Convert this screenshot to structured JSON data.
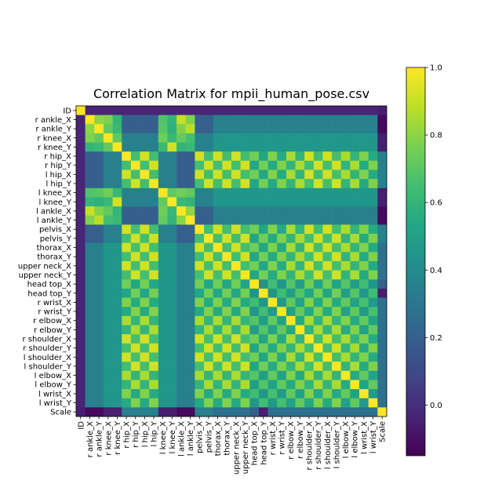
{
  "chart_data": {
    "type": "heatmap",
    "title": "Correlation Matrix for mpii_human_pose.csv",
    "categories": [
      "ID",
      "r ankle_X",
      "r ankle_Y",
      "r knee_X",
      "r knee_Y",
      "r hip_X",
      "r hip_Y",
      "l hip_X",
      "l hip_Y",
      "l knee_X",
      "l knee_Y",
      "l ankle_X",
      "l ankle_Y",
      "pelvis_X",
      "pelvis_Y",
      "thorax_X",
      "thorax_Y",
      "upper neck_X",
      "upper neck_Y",
      "head top_X",
      "head top_Y",
      "r wrist_X",
      "r wrist_Y",
      "r elbow_X",
      "r elbow_Y",
      "r shoulder_X",
      "r shoulder_Y",
      "l shoulder_X",
      "l shoulder_Y",
      "l elbow_X",
      "l elbow_Y",
      "l wrist_X",
      "l wrist_Y",
      "Scale"
    ],
    "colormap": "viridis",
    "clim": [
      -0.15,
      1
    ],
    "cticks": [
      {
        "value": 0,
        "label": "0.0"
      },
      0.2,
      0.4,
      0.6,
      0.8,
      {
        "value": 1,
        "label": "1.0"
      }
    ],
    "values": [
      [
        1,
        -0.03,
        -0.03,
        -0.03,
        -0.03,
        -0.03,
        -0.03,
        -0.03,
        -0.03,
        -0.03,
        -0.03,
        -0.03,
        -0.03,
        -0.03,
        -0.03,
        -0.03,
        -0.03,
        -0.03,
        -0.03,
        -0.03,
        -0.03,
        -0.03,
        -0.03,
        -0.03,
        -0.03,
        -0.03,
        -0.03,
        -0.03,
        -0.03,
        -0.03,
        -0.03,
        -0.03,
        -0.03,
        -0.05
      ],
      [
        -0.03,
        1,
        0.8,
        0.78,
        0.6,
        0.2,
        0.2,
        0.2,
        0.2,
        0.68,
        0.6,
        0.9,
        0.78,
        0.2,
        0.2,
        0.35,
        0.35,
        0.35,
        0.35,
        0.35,
        0.35,
        0.35,
        0.35,
        0.35,
        0.35,
        0.35,
        0.35,
        0.35,
        0.35,
        0.35,
        0.35,
        0.35,
        0.35,
        -0.12
      ],
      [
        -0.03,
        0.8,
        1,
        0.72,
        0.62,
        0.2,
        0.2,
        0.2,
        0.2,
        0.7,
        0.58,
        0.78,
        0.88,
        0.2,
        0.2,
        0.35,
        0.35,
        0.35,
        0.35,
        0.35,
        0.35,
        0.35,
        0.35,
        0.35,
        0.35,
        0.35,
        0.35,
        0.35,
        0.35,
        0.35,
        0.35,
        0.35,
        0.35,
        -0.12
      ],
      [
        -0.03,
        0.78,
        0.72,
        1,
        0.72,
        0.35,
        0.35,
        0.35,
        0.35,
        0.75,
        0.62,
        0.72,
        0.65,
        0.35,
        0.35,
        0.45,
        0.45,
        0.45,
        0.45,
        0.45,
        0.45,
        0.45,
        0.45,
        0.45,
        0.45,
        0.45,
        0.45,
        0.45,
        0.45,
        0.45,
        0.45,
        0.45,
        0.45,
        -0.05
      ],
      [
        -0.03,
        0.6,
        0.62,
        0.72,
        1,
        0.35,
        0.35,
        0.35,
        0.35,
        0.62,
        0.92,
        0.6,
        0.62,
        0.35,
        0.35,
        0.45,
        0.45,
        0.45,
        0.45,
        0.45,
        0.45,
        0.45,
        0.45,
        0.45,
        0.45,
        0.45,
        0.45,
        0.45,
        0.45,
        0.45,
        0.45,
        0.45,
        0.45,
        -0.05
      ],
      [
        -0.03,
        0.2,
        0.2,
        0.35,
        0.35,
        1,
        0.65,
        0.92,
        0.65,
        0.35,
        0.35,
        0.2,
        0.2,
        0.92,
        0.65,
        0.92,
        0.65,
        0.92,
        0.65,
        0.75,
        0.53,
        0.78,
        0.55,
        0.85,
        0.6,
        0.92,
        0.65,
        0.92,
        0.65,
        0.85,
        0.6,
        0.78,
        0.55,
        0.35
      ],
      [
        -0.03,
        0.2,
        0.2,
        0.35,
        0.35,
        0.65,
        1,
        0.65,
        0.92,
        0.35,
        0.35,
        0.2,
        0.2,
        0.65,
        0.92,
        0.65,
        0.92,
        0.65,
        0.92,
        0.53,
        0.75,
        0.55,
        0.78,
        0.6,
        0.85,
        0.65,
        0.92,
        0.65,
        0.92,
        0.6,
        0.85,
        0.55,
        0.78,
        0.35
      ],
      [
        -0.03,
        0.2,
        0.2,
        0.35,
        0.35,
        0.92,
        0.65,
        1,
        0.65,
        0.35,
        0.35,
        0.2,
        0.2,
        0.92,
        0.65,
        0.92,
        0.65,
        0.92,
        0.65,
        0.75,
        0.53,
        0.78,
        0.55,
        0.85,
        0.6,
        0.92,
        0.65,
        0.92,
        0.65,
        0.85,
        0.6,
        0.78,
        0.55,
        0.35
      ],
      [
        -0.03,
        0.2,
        0.2,
        0.35,
        0.35,
        0.65,
        0.92,
        0.65,
        1,
        0.35,
        0.35,
        0.2,
        0.2,
        0.65,
        0.92,
        0.65,
        0.92,
        0.65,
        0.92,
        0.53,
        0.75,
        0.55,
        0.78,
        0.6,
        0.85,
        0.65,
        0.92,
        0.65,
        0.92,
        0.6,
        0.85,
        0.55,
        0.78,
        0.35
      ],
      [
        -0.03,
        0.68,
        0.7,
        0.75,
        0.62,
        0.35,
        0.35,
        0.35,
        0.35,
        1,
        0.72,
        0.75,
        0.72,
        0.35,
        0.35,
        0.45,
        0.45,
        0.45,
        0.45,
        0.45,
        0.45,
        0.45,
        0.45,
        0.45,
        0.45,
        0.45,
        0.45,
        0.45,
        0.45,
        0.45,
        0.45,
        0.45,
        0.45,
        -0.05
      ],
      [
        -0.03,
        0.6,
        0.58,
        0.62,
        0.92,
        0.35,
        0.35,
        0.35,
        0.35,
        0.72,
        1,
        0.62,
        0.6,
        0.35,
        0.35,
        0.45,
        0.45,
        0.45,
        0.45,
        0.45,
        0.45,
        0.45,
        0.45,
        0.45,
        0.45,
        0.45,
        0.45,
        0.45,
        0.45,
        0.45,
        0.45,
        0.45,
        0.45,
        -0.05
      ],
      [
        -0.03,
        0.9,
        0.78,
        0.72,
        0.6,
        0.2,
        0.2,
        0.2,
        0.2,
        0.75,
        0.62,
        1,
        0.8,
        0.2,
        0.2,
        0.35,
        0.35,
        0.35,
        0.35,
        0.35,
        0.35,
        0.35,
        0.35,
        0.35,
        0.35,
        0.35,
        0.35,
        0.35,
        0.35,
        0.35,
        0.35,
        0.35,
        0.35,
        -0.12
      ],
      [
        -0.03,
        0.78,
        0.88,
        0.65,
        0.62,
        0.2,
        0.2,
        0.2,
        0.2,
        0.72,
        0.6,
        0.8,
        1,
        0.2,
        0.2,
        0.35,
        0.35,
        0.35,
        0.35,
        0.35,
        0.35,
        0.35,
        0.35,
        0.35,
        0.35,
        0.35,
        0.35,
        0.35,
        0.35,
        0.35,
        0.35,
        0.35,
        0.35,
        -0.12
      ],
      [
        -0.03,
        0.2,
        0.2,
        0.35,
        0.35,
        0.92,
        0.65,
        0.92,
        0.65,
        0.35,
        0.35,
        0.2,
        0.2,
        1,
        0.65,
        0.92,
        0.65,
        0.92,
        0.65,
        0.75,
        0.53,
        0.78,
        0.55,
        0.85,
        0.6,
        0.92,
        0.65,
        0.92,
        0.65,
        0.85,
        0.6,
        0.78,
        0.55,
        0.35
      ],
      [
        -0.03,
        0.2,
        0.2,
        0.35,
        0.35,
        0.65,
        0.92,
        0.65,
        0.92,
        0.35,
        0.35,
        0.2,
        0.2,
        0.65,
        1,
        0.65,
        0.92,
        0.65,
        0.92,
        0.53,
        0.75,
        0.55,
        0.78,
        0.6,
        0.85,
        0.65,
        0.92,
        0.65,
        0.92,
        0.6,
        0.85,
        0.55,
        0.78,
        0.35
      ],
      [
        -0.03,
        0.35,
        0.35,
        0.45,
        0.45,
        0.92,
        0.65,
        0.92,
        0.65,
        0.45,
        0.45,
        0.35,
        0.35,
        0.92,
        0.65,
        1,
        0.65,
        0.92,
        0.65,
        0.75,
        0.53,
        0.78,
        0.55,
        0.85,
        0.6,
        0.92,
        0.65,
        0.92,
        0.65,
        0.85,
        0.6,
        0.78,
        0.55,
        0.28
      ],
      [
        -0.03,
        0.35,
        0.35,
        0.45,
        0.45,
        0.65,
        0.92,
        0.65,
        0.92,
        0.45,
        0.45,
        0.35,
        0.35,
        0.65,
        0.92,
        0.65,
        1,
        0.65,
        0.92,
        0.53,
        0.75,
        0.55,
        0.78,
        0.6,
        0.85,
        0.65,
        0.92,
        0.65,
        0.92,
        0.6,
        0.85,
        0.55,
        0.78,
        0.28
      ],
      [
        -0.03,
        0.35,
        0.35,
        0.45,
        0.45,
        0.92,
        0.65,
        0.92,
        0.65,
        0.45,
        0.45,
        0.35,
        0.35,
        0.92,
        0.65,
        0.92,
        0.65,
        1,
        0.65,
        0.75,
        0.53,
        0.78,
        0.55,
        0.85,
        0.6,
        0.92,
        0.65,
        0.92,
        0.65,
        0.85,
        0.6,
        0.78,
        0.55,
        0.28
      ],
      [
        -0.03,
        0.35,
        0.35,
        0.45,
        0.45,
        0.65,
        0.92,
        0.65,
        0.92,
        0.45,
        0.45,
        0.35,
        0.35,
        0.65,
        0.92,
        0.65,
        0.92,
        0.65,
        1,
        0.53,
        0.75,
        0.55,
        0.78,
        0.6,
        0.85,
        0.65,
        0.92,
        0.65,
        0.92,
        0.6,
        0.85,
        0.55,
        0.78,
        0.28
      ],
      [
        -0.03,
        0.35,
        0.35,
        0.45,
        0.45,
        0.75,
        0.53,
        0.75,
        0.53,
        0.45,
        0.45,
        0.35,
        0.35,
        0.75,
        0.53,
        0.75,
        0.53,
        0.75,
        0.53,
        1,
        0.44,
        0.64,
        0.45,
        0.69,
        0.49,
        0.75,
        0.53,
        0.75,
        0.53,
        0.69,
        0.49,
        0.64,
        0.45,
        0.2
      ],
      [
        -0.03,
        0.35,
        0.35,
        0.45,
        0.45,
        0.53,
        0.75,
        0.53,
        0.75,
        0.45,
        0.45,
        0.35,
        0.35,
        0.53,
        0.75,
        0.53,
        0.75,
        0.53,
        0.75,
        0.44,
        1,
        0.45,
        0.64,
        0.49,
        0.69,
        0.53,
        0.75,
        0.53,
        0.75,
        0.49,
        0.69,
        0.45,
        0.64,
        -0.05
      ],
      [
        -0.03,
        0.35,
        0.35,
        0.45,
        0.45,
        0.78,
        0.55,
        0.78,
        0.55,
        0.45,
        0.45,
        0.35,
        0.35,
        0.78,
        0.55,
        0.78,
        0.55,
        0.78,
        0.55,
        0.64,
        0.45,
        1,
        0.47,
        0.72,
        0.51,
        0.78,
        0.55,
        0.78,
        0.55,
        0.72,
        0.51,
        0.66,
        0.47,
        0.28
      ],
      [
        -0.03,
        0.35,
        0.35,
        0.45,
        0.45,
        0.55,
        0.78,
        0.55,
        0.78,
        0.45,
        0.45,
        0.35,
        0.35,
        0.55,
        0.78,
        0.55,
        0.78,
        0.55,
        0.78,
        0.45,
        0.64,
        0.47,
        1,
        0.51,
        0.72,
        0.55,
        0.78,
        0.55,
        0.78,
        0.51,
        0.72,
        0.47,
        0.66,
        0.28
      ],
      [
        -0.03,
        0.35,
        0.35,
        0.45,
        0.45,
        0.85,
        0.6,
        0.85,
        0.6,
        0.45,
        0.45,
        0.35,
        0.35,
        0.85,
        0.6,
        0.85,
        0.6,
        0.85,
        0.6,
        0.69,
        0.49,
        0.72,
        0.51,
        1,
        0.55,
        0.85,
        0.6,
        0.85,
        0.6,
        0.78,
        0.55,
        0.72,
        0.51,
        0.28
      ],
      [
        -0.03,
        0.35,
        0.35,
        0.45,
        0.45,
        0.6,
        0.85,
        0.6,
        0.85,
        0.45,
        0.45,
        0.35,
        0.35,
        0.6,
        0.85,
        0.6,
        0.85,
        0.6,
        0.85,
        0.49,
        0.69,
        0.51,
        0.72,
        0.55,
        1,
        0.6,
        0.85,
        0.6,
        0.85,
        0.55,
        0.78,
        0.51,
        0.72,
        0.28
      ],
      [
        -0.03,
        0.35,
        0.35,
        0.45,
        0.45,
        0.92,
        0.65,
        0.92,
        0.65,
        0.45,
        0.45,
        0.35,
        0.35,
        0.92,
        0.65,
        0.92,
        0.65,
        0.92,
        0.65,
        0.75,
        0.53,
        0.78,
        0.55,
        0.85,
        0.6,
        1,
        0.65,
        0.92,
        0.65,
        0.85,
        0.6,
        0.78,
        0.55,
        0.28
      ],
      [
        -0.03,
        0.35,
        0.35,
        0.45,
        0.45,
        0.65,
        0.92,
        0.65,
        0.92,
        0.45,
        0.45,
        0.35,
        0.35,
        0.65,
        0.92,
        0.65,
        0.92,
        0.65,
        0.92,
        0.53,
        0.75,
        0.55,
        0.78,
        0.6,
        0.85,
        0.65,
        1,
        0.65,
        0.92,
        0.6,
        0.85,
        0.55,
        0.78,
        0.28
      ],
      [
        -0.03,
        0.35,
        0.35,
        0.45,
        0.45,
        0.92,
        0.65,
        0.92,
        0.65,
        0.45,
        0.45,
        0.35,
        0.35,
        0.92,
        0.65,
        0.92,
        0.65,
        0.92,
        0.65,
        0.75,
        0.53,
        0.78,
        0.55,
        0.85,
        0.6,
        0.92,
        0.65,
        1,
        0.65,
        0.85,
        0.6,
        0.78,
        0.55,
        0.28
      ],
      [
        -0.03,
        0.35,
        0.35,
        0.45,
        0.45,
        0.65,
        0.92,
        0.65,
        0.92,
        0.45,
        0.45,
        0.35,
        0.35,
        0.65,
        0.92,
        0.65,
        0.92,
        0.65,
        0.92,
        0.53,
        0.75,
        0.55,
        0.78,
        0.6,
        0.85,
        0.65,
        0.92,
        0.65,
        1,
        0.6,
        0.85,
        0.55,
        0.78,
        0.28
      ],
      [
        -0.03,
        0.35,
        0.35,
        0.45,
        0.45,
        0.85,
        0.6,
        0.85,
        0.6,
        0.45,
        0.45,
        0.35,
        0.35,
        0.85,
        0.6,
        0.85,
        0.6,
        0.85,
        0.6,
        0.69,
        0.49,
        0.72,
        0.51,
        0.78,
        0.55,
        0.85,
        0.6,
        0.85,
        0.6,
        1,
        0.55,
        0.72,
        0.51,
        0.28
      ],
      [
        -0.03,
        0.35,
        0.35,
        0.45,
        0.45,
        0.6,
        0.85,
        0.6,
        0.85,
        0.45,
        0.45,
        0.35,
        0.35,
        0.6,
        0.85,
        0.6,
        0.85,
        0.6,
        0.85,
        0.49,
        0.69,
        0.51,
        0.72,
        0.55,
        0.78,
        0.6,
        0.85,
        0.6,
        0.85,
        0.55,
        1,
        0.51,
        0.72,
        0.28
      ],
      [
        -0.03,
        0.35,
        0.35,
        0.45,
        0.45,
        0.78,
        0.55,
        0.78,
        0.55,
        0.45,
        0.45,
        0.35,
        0.35,
        0.78,
        0.55,
        0.78,
        0.55,
        0.78,
        0.55,
        0.64,
        0.45,
        0.66,
        0.47,
        0.72,
        0.51,
        0.78,
        0.55,
        0.78,
        0.55,
        0.72,
        0.51,
        1,
        0.47,
        0.28
      ],
      [
        -0.03,
        0.35,
        0.35,
        0.45,
        0.45,
        0.55,
        0.78,
        0.55,
        0.78,
        0.45,
        0.45,
        0.35,
        0.35,
        0.55,
        0.78,
        0.55,
        0.78,
        0.55,
        0.78,
        0.45,
        0.64,
        0.47,
        0.66,
        0.51,
        0.72,
        0.55,
        0.78,
        0.55,
        0.78,
        0.51,
        0.72,
        0.47,
        1,
        0.28
      ],
      [
        -0.05,
        -0.12,
        -0.12,
        -0.05,
        -0.05,
        0.35,
        0.35,
        0.35,
        0.35,
        -0.05,
        -0.05,
        -0.12,
        -0.12,
        0.35,
        0.35,
        0.28,
        0.28,
        0.28,
        0.28,
        0.2,
        -0.05,
        0.28,
        0.28,
        0.28,
        0.28,
        0.28,
        0.28,
        0.28,
        0.28,
        0.28,
        0.28,
        0.28,
        0.28,
        1
      ]
    ]
  }
}
